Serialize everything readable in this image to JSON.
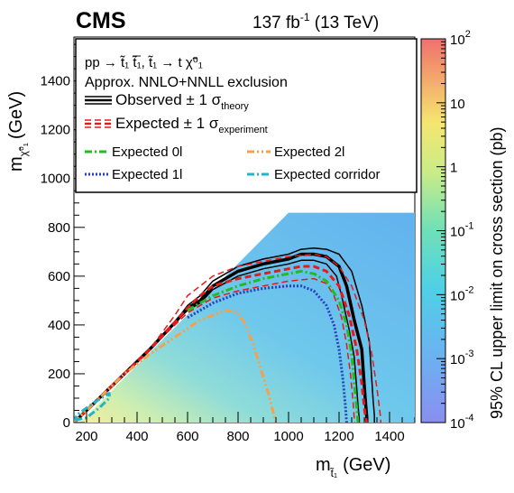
{
  "header": {
    "experiment": "CMS",
    "luminosity": "137 fb",
    "luminosity_exp": "-1",
    "energy": "(13 TeV)"
  },
  "legend": {
    "process": "pp → t̃₁ t̃̅₁, t̃₁ → t χ̃⁰₁",
    "approx": "Approx. NNLO+NNLL exclusion",
    "entries": [
      {
        "label": "Observed ± 1 σ",
        "sub": "theory",
        "color": "#000000",
        "style": "solid"
      },
      {
        "label": "Expected ± 1 σ",
        "sub": "experiment",
        "color": "#e41a1c",
        "style": "dashed"
      },
      {
        "label": "Expected 0l",
        "sub": "",
        "color": "#22bb22",
        "style": "dashdot"
      },
      {
        "label": "Expected 2l",
        "sub": "",
        "color": "#f5a14a",
        "style": "dashdotdot"
      },
      {
        "label": "Expected 1l",
        "sub": "",
        "color": "#2a3fbf",
        "style": "dotted"
      },
      {
        "label": "Expected corridor",
        "sub": "",
        "color": "#22b5c8",
        "style": "dashdot"
      }
    ]
  },
  "axes": {
    "xlabel": "m",
    "xlabel_sub": "t̃₁",
    "xlabel_unit": "(GeV)",
    "ylabel": "m",
    "ylabel_sub": "χ̃⁰₁",
    "ylabel_unit": "(GeV)",
    "zlabel": "95% CL upper limit on cross section (pb)"
  },
  "chart_data": {
    "type": "heatmap",
    "title": "",
    "xlabel": "m_stop (GeV)",
    "ylabel": "m_LSP (GeV)",
    "zlabel": "95% CL upper limit on cross section (pb)",
    "xlim": [
      150,
      1500
    ],
    "ylim": [
      0,
      1580
    ],
    "xticks": [
      200,
      400,
      600,
      800,
      1000,
      1200,
      1400
    ],
    "yticks": [
      0,
      200,
      400,
      600,
      800,
      1000,
      1200,
      1400
    ],
    "zlim": [
      0.0001,
      100
    ],
    "zscale": "log",
    "zticks": [
      {
        "label": "10",
        "exp": "-4"
      },
      {
        "label": "10",
        "exp": "-3"
      },
      {
        "label": "10",
        "exp": "-2"
      },
      {
        "label": "10",
        "exp": "-1"
      },
      {
        "label": "1",
        "exp": ""
      },
      {
        "label": "10",
        "exp": ""
      },
      {
        "label": "10",
        "exp": "2"
      }
    ],
    "legend_position": "top",
    "contours": {
      "observed": {
        "x": [
          150,
          300,
          450,
          550,
          600,
          650,
          700,
          800,
          900,
          1000,
          1050,
          1100,
          1150,
          1200,
          1230,
          1260,
          1290,
          1300,
          1305,
          1310,
          1310
        ],
        "y": [
          0,
          150,
          300,
          410,
          470,
          500,
          560,
          620,
          650,
          670,
          690,
          690,
          680,
          640,
          560,
          420,
          300,
          150,
          80,
          20,
          0
        ]
      },
      "observed_up": {
        "x": [
          150,
          300,
          450,
          550,
          600,
          650,
          700,
          800,
          900,
          1000,
          1050,
          1100,
          1150,
          1200,
          1250,
          1290,
          1320,
          1330,
          1335,
          1340,
          1340
        ],
        "y": [
          0,
          150,
          300,
          410,
          480,
          520,
          580,
          640,
          670,
          690,
          710,
          715,
          710,
          690,
          620,
          480,
          330,
          170,
          90,
          30,
          0
        ]
      },
      "observed_down": {
        "x": [
          150,
          300,
          450,
          550,
          600,
          650,
          700,
          800,
          900,
          1000,
          1050,
          1100,
          1150,
          1190,
          1210,
          1240,
          1260,
          1270,
          1275,
          1280,
          1280
        ],
        "y": [
          0,
          150,
          300,
          410,
          460,
          490,
          545,
          600,
          630,
          650,
          665,
          665,
          650,
          600,
          520,
          380,
          270,
          140,
          70,
          15,
          0
        ]
      },
      "expected": {
        "x": [
          150,
          300,
          450,
          550,
          600,
          650,
          700,
          800,
          900,
          1000,
          1050,
          1100,
          1150,
          1200,
          1240,
          1270,
          1290,
          1300,
          1305,
          1310
        ],
        "y": [
          0,
          150,
          300,
          410,
          470,
          520,
          560,
          590,
          610,
          630,
          640,
          640,
          620,
          560,
          440,
          300,
          160,
          60,
          20,
          0
        ]
      },
      "expected_up": {
        "x": [
          150,
          300,
          450,
          550,
          600,
          650,
          700,
          800,
          900,
          1000,
          1100,
          1150,
          1200,
          1250,
          1300,
          1330,
          1350,
          1360,
          1365,
          1365
        ],
        "y": [
          0,
          150,
          300,
          440,
          520,
          560,
          600,
          640,
          660,
          680,
          690,
          680,
          640,
          560,
          420,
          280,
          140,
          60,
          15,
          0
        ]
      },
      "expected_down": {
        "x": [
          150,
          300,
          450,
          550,
          600,
          650,
          700,
          800,
          900,
          1000,
          1100,
          1150,
          1180,
          1210,
          1230,
          1245,
          1255,
          1260,
          1262
        ],
        "y": [
          0,
          150,
          300,
          400,
          450,
          480,
          510,
          540,
          560,
          580,
          590,
          570,
          520,
          430,
          320,
          200,
          90,
          20,
          0
        ]
      },
      "expected_0l": {
        "x": [
          600,
          650,
          700,
          800,
          900,
          1000,
          1050,
          1100,
          1150,
          1200,
          1230,
          1250,
          1260,
          1270,
          1275
        ],
        "y": [
          460,
          490,
          520,
          560,
          590,
          610,
          620,
          610,
          580,
          500,
          400,
          280,
          160,
          60,
          0
        ]
      },
      "expected_1l": {
        "x": [
          600,
          650,
          700,
          800,
          900,
          1000,
          1050,
          1100,
          1150,
          1180,
          1200,
          1215,
          1225,
          1230
        ],
        "y": [
          430,
          460,
          490,
          530,
          550,
          560,
          560,
          540,
          480,
          400,
          300,
          180,
          70,
          0
        ]
      },
      "expected_2l": {
        "x": [
          150,
          250,
          350,
          450,
          550,
          650,
          750,
          800,
          830,
          860,
          890,
          920,
          940,
          950
        ],
        "y": [
          0,
          100,
          200,
          280,
          350,
          420,
          460,
          450,
          400,
          320,
          220,
          120,
          40,
          0
        ]
      },
      "expected_corridor": {
        "x": [
          155,
          200,
          250,
          290,
          290,
          250,
          200,
          160,
          155
        ],
        "y": [
          10,
          20,
          60,
          100,
          120,
          95,
          60,
          30,
          10
        ]
      }
    }
  }
}
